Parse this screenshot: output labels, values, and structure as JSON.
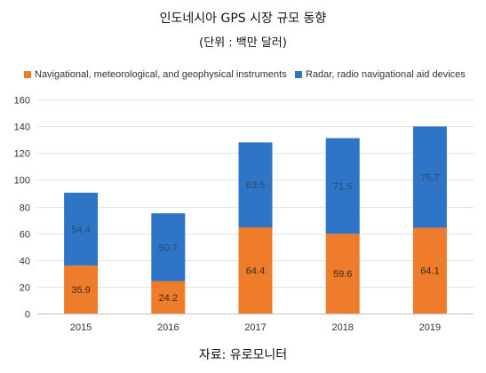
{
  "chart_data": {
    "type": "bar",
    "stacked": true,
    "title": "인도네시아 GPS 시장 규모 동향",
    "subtitle": "(단위 : 백만 달러)",
    "categories": [
      "2015",
      "2016",
      "2017",
      "2018",
      "2019"
    ],
    "series": [
      {
        "name": "Navigational, meteorological, and geophysical instruments",
        "color": "#ee7c2a",
        "values": [
          35.9,
          24.2,
          64.4,
          59.6,
          64.1
        ]
      },
      {
        "name": "Radar, radio navigational aid devices",
        "color": "#2e75c8",
        "values": [
          54.4,
          50.7,
          63.5,
          71.5,
          75.7
        ]
      }
    ],
    "data_labels": [
      [
        "35.9",
        "24.2",
        "64.4",
        "59.6",
        "64.1"
      ],
      [
        "54.4",
        "50.7",
        "63.5",
        "71.5",
        "75.7"
      ]
    ],
    "ylim": [
      0,
      160
    ],
    "yticks": [
      "0",
      "20",
      "40",
      "60",
      "80",
      "100",
      "120",
      "140",
      "160"
    ],
    "grid": true,
    "legend_position": "top",
    "source": "자료: 유로모니터"
  }
}
